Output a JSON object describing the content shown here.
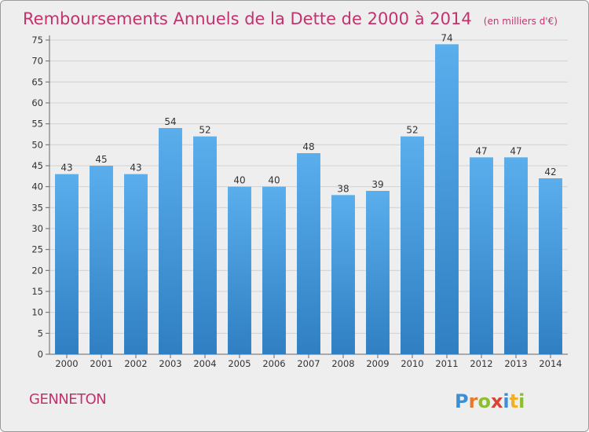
{
  "chart_data": {
    "type": "bar",
    "title": "Remboursements Annuels de la Dette de 2000 à 2014",
    "subtitle": "(en milliers d'€)",
    "categories": [
      "2000",
      "2001",
      "2002",
      "2003",
      "2004",
      "2005",
      "2006",
      "2007",
      "2008",
      "2009",
      "2010",
      "2011",
      "2012",
      "2013",
      "2014"
    ],
    "values": [
      43,
      45,
      43,
      54,
      52,
      40,
      40,
      48,
      38,
      39,
      52,
      74,
      47,
      47,
      42
    ],
    "ylim": [
      0,
      75
    ],
    "yticks": [
      0,
      5,
      10,
      15,
      20,
      25,
      30,
      35,
      40,
      45,
      50,
      55,
      60,
      65,
      70,
      75
    ],
    "grid": true,
    "bar_color": "#4a9edf"
  },
  "commune": "GENNETON",
  "logo": {
    "text": "Proxiti",
    "letters": [
      "P",
      "r",
      "o",
      "x",
      "i",
      "t",
      "i"
    ],
    "colors": [
      "#3d8fd4",
      "#e8792a",
      "#8cbf2e",
      "#d9432f",
      "#3d8fd4",
      "#f0b02a",
      "#8cbf2e"
    ]
  }
}
